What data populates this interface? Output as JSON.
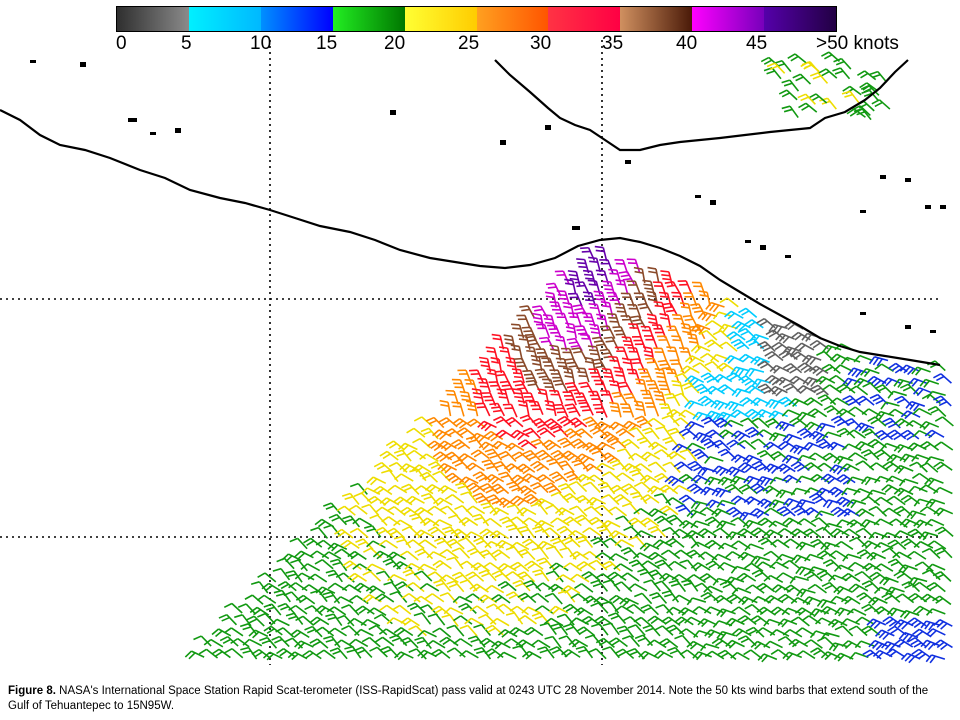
{
  "colorbar": {
    "labels": [
      "0",
      "5",
      "10",
      "15",
      "20",
      "25",
      "30",
      "35",
      "40",
      "45",
      ">50 knots"
    ],
    "segments": [
      [
        "#2f2f2f",
        "#8a8a8a"
      ],
      [
        "#00f0ff",
        "#00b8ff"
      ],
      [
        "#0090ff",
        "#0000ff"
      ],
      [
        "#22ee22",
        "#007700"
      ],
      [
        "#ffff33",
        "#ffcc00"
      ],
      [
        "#ffa020",
        "#ff5500"
      ],
      [
        "#ff3344",
        "#ff0044"
      ],
      [
        "#d09060",
        "#4a1a08"
      ],
      [
        "#ff00ff",
        "#7700bb"
      ],
      [
        "#5500aa",
        "#220044"
      ]
    ]
  },
  "map": {
    "coastline_color": "#000000",
    "gridline_color": "#000000"
  },
  "wind_colors": {
    "calm_gray": "#606060",
    "cyan": "#00ccff",
    "blue": "#1030e0",
    "green": "#119911",
    "yellow": "#eedd00",
    "orange": "#ff8800",
    "red": "#ff1122",
    "brown": "#8a4a2a",
    "magenta": "#cc00cc",
    "purple": "#6600aa"
  },
  "caption": {
    "figure_label": "Figure 8.",
    "text": "NASA's International Space Station Rapid Scat-terometer (ISS-RapidScat) pass valid at 0243 UTC 28 November 2014.  Note the 50 kts wind barbs that extend south of the Gulf of Tehuantepec to 15N95W."
  }
}
